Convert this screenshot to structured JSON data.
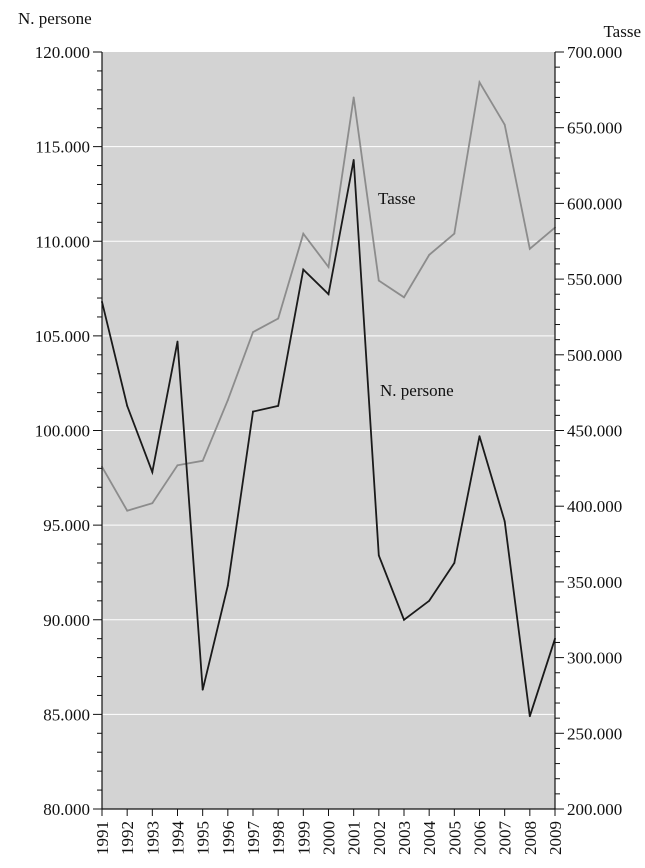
{
  "chart_data": {
    "type": "line",
    "title": "",
    "x": [
      "1991",
      "1992",
      "1993",
      "1994",
      "1995",
      "1996",
      "1997",
      "1998",
      "1999",
      "2000",
      "2001",
      "2002",
      "2003",
      "2004",
      "2005",
      "2006",
      "2007",
      "2008",
      "2009"
    ],
    "left_axis": {
      "label": "N. persone",
      "ylim": [
        80000,
        120000
      ],
      "ticks": [
        "80.000",
        "85.000",
        "90.000",
        "95.000",
        "100.000",
        "105.000",
        "110.000",
        "115.000",
        "120.000"
      ],
      "tick_values": [
        80000,
        85000,
        90000,
        95000,
        100000,
        105000,
        110000,
        115000,
        120000
      ]
    },
    "right_axis": {
      "label": "Tasse",
      "ylim": [
        200000,
        700000
      ],
      "ticks": [
        "200.000",
        "250.000",
        "300.000",
        "350.000",
        "400.000",
        "450.000",
        "500.000",
        "550.000",
        "600.000",
        "650.000",
        "700.000"
      ],
      "tick_values": [
        200000,
        250000,
        300000,
        350000,
        400000,
        450000,
        500000,
        550000,
        600000,
        650000,
        700000
      ]
    },
    "series": [
      {
        "name": "N. persone",
        "axis": "left",
        "color": "#1a1a1a",
        "values": [
          106800,
          101300,
          97800,
          104700,
          86300,
          91800,
          101000,
          101300,
          108500,
          107200,
          114300,
          93400,
          90000,
          91000,
          93000,
          99700,
          95200,
          84900,
          89000
        ]
      },
      {
        "name": "Tasse",
        "axis": "right",
        "color": "#8c8c8c",
        "values": [
          426000,
          397000,
          402000,
          427000,
          430000,
          470000,
          515000,
          524000,
          580000,
          558000,
          670000,
          549000,
          538000,
          566000,
          580000,
          680000,
          652000,
          570000,
          584000
        ]
      }
    ],
    "annotations": [
      {
        "text": "Tasse",
        "series": "Tasse"
      },
      {
        "text": "N. persone",
        "series": "N. persone"
      }
    ],
    "colors": {
      "plot_background": "#d3d3d3",
      "gridlines": "#ffffff"
    }
  }
}
